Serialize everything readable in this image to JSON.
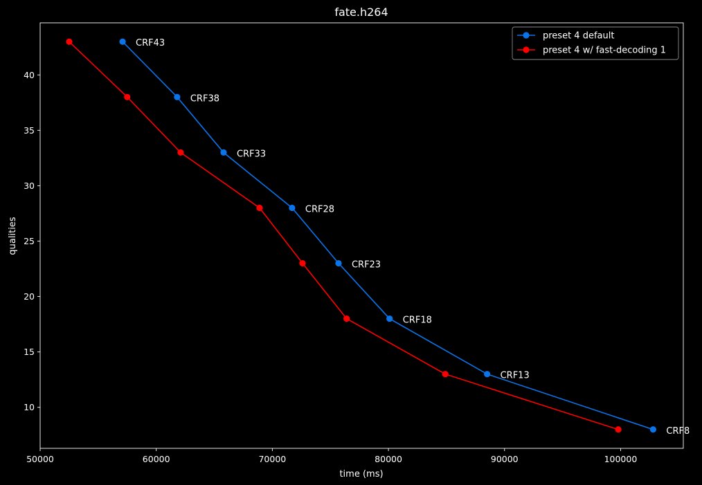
{
  "chart_data": {
    "type": "line",
    "title": "fate.h264",
    "xlabel": "time (ms)",
    "ylabel": "qualities",
    "xlim": [
      50000,
      105400
    ],
    "ylim": [
      6.3,
      44.7
    ],
    "xticks": [
      50000,
      60000,
      70000,
      80000,
      90000,
      100000
    ],
    "yticks": [
      10,
      15,
      20,
      25,
      30,
      35,
      40
    ],
    "grid": false,
    "legend_position": "top-right",
    "series": [
      {
        "name": "preset 4 default",
        "color": "#0a74ea",
        "marker": "circle",
        "x": [
          57100,
          61800,
          65800,
          71700,
          75700,
          80100,
          88500,
          102800
        ],
        "y": [
          43,
          38,
          33,
          28,
          23,
          18,
          13,
          8
        ],
        "labels": [
          "CRF43",
          "CRF38",
          "CRF33",
          "CRF28",
          "CRF23",
          "CRF18",
          "CRF13",
          "CRF8"
        ]
      },
      {
        "name": "preset 4 w/ fast-decoding 1",
        "color": "#ff0000",
        "marker": "circle",
        "x": [
          52500,
          57500,
          62100,
          68900,
          72600,
          76400,
          84900,
          99800
        ],
        "y": [
          43,
          38,
          33,
          28,
          23,
          18,
          13,
          8
        ]
      }
    ]
  }
}
